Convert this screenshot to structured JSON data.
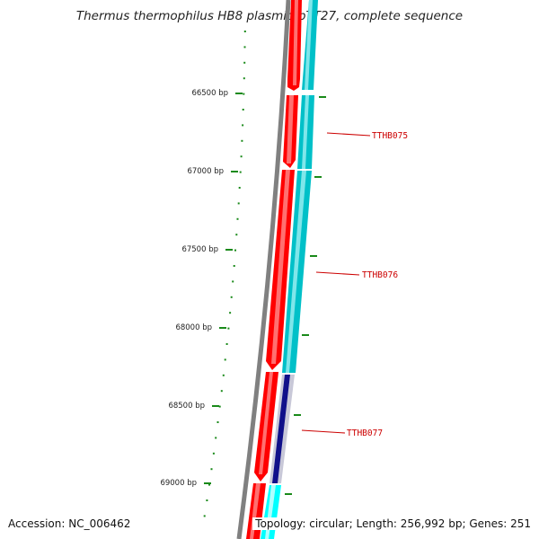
{
  "title": "Thermus thermophilus HB8 plasmid pTT27, complete sequence",
  "footer": {
    "accession": "Accession: NC_006462",
    "summary": "Topology: circular; Length: 256,992 bp; Genes: 251"
  },
  "ticks": [
    "66500 bp",
    "67000 bp",
    "67500 bp",
    "68000 bp",
    "68500 bp",
    "69000 bp"
  ],
  "genes": [
    "TTHB075",
    "TTHB076",
    "TTHB077"
  ],
  "colors": {
    "backbone": "#808080",
    "cds_forward": "#ff0000",
    "cds_reverse": "#00c0c8",
    "tick": "#1a8a1a",
    "gene_label": "#cc0000",
    "feature_dark": "#10108a",
    "feature_light": "#00ffff"
  }
}
